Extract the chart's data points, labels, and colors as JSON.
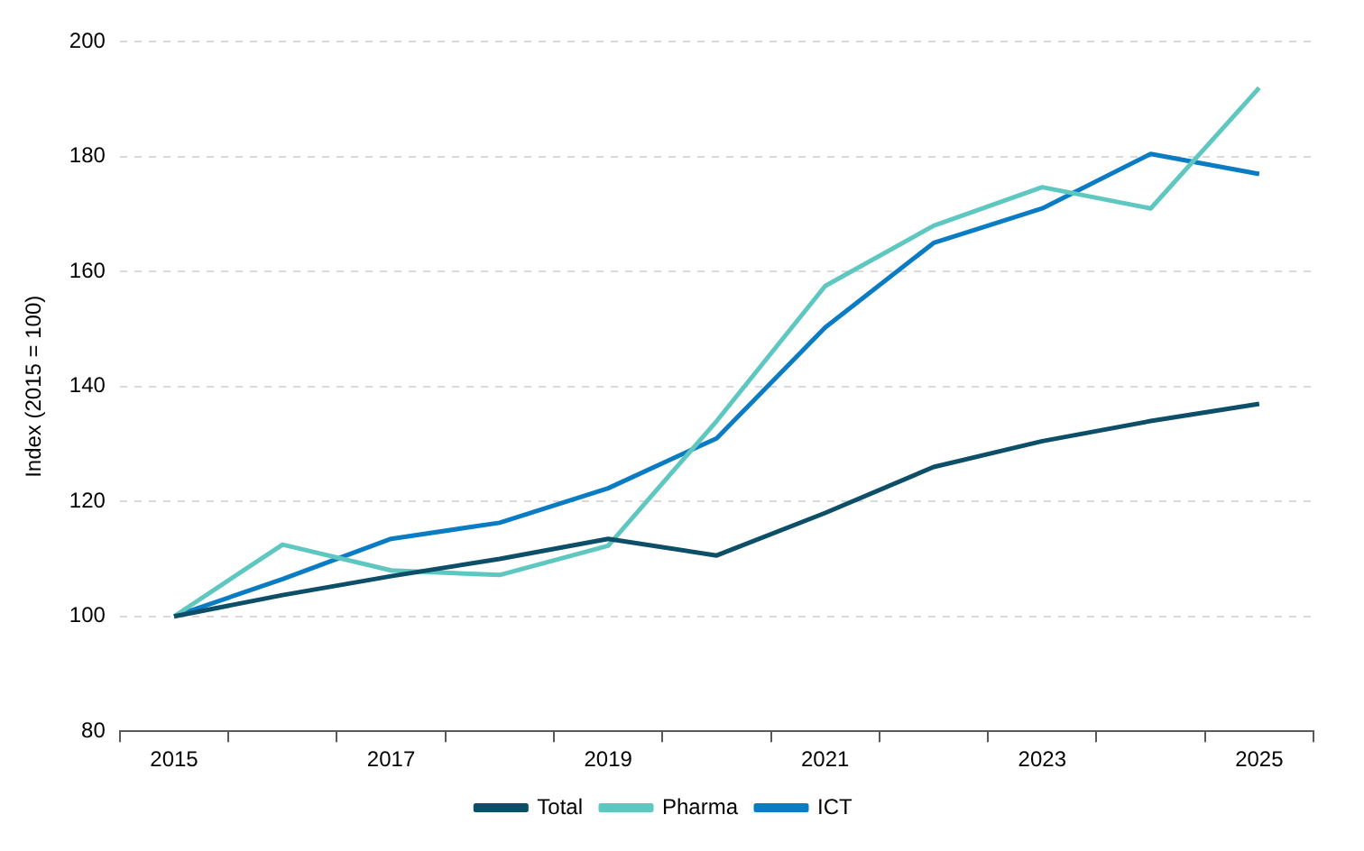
{
  "chart_data": {
    "type": "line",
    "ylabel": "Index (2015 = 100)",
    "categories": [
      "2015",
      null,
      "2017",
      null,
      "2019",
      null,
      "2021",
      null,
      "2023",
      null,
      "2025"
    ],
    "series": [
      {
        "name": "Total",
        "color": "#0d4f68",
        "values": [
          100,
          103.7,
          107,
          110,
          113.5,
          110.6,
          118,
          126,
          130.5,
          134,
          137
        ]
      },
      {
        "name": "Pharma",
        "color": "#5ec8c0",
        "values": [
          100,
          112.5,
          108,
          107.2,
          112.3,
          134,
          157.5,
          168,
          174.7,
          171,
          192
        ]
      },
      {
        "name": "ICT",
        "color": "#0a7cc4",
        "values": [
          100,
          106.5,
          113.5,
          116.3,
          122.3,
          131,
          150.3,
          165,
          171,
          180.5,
          177
        ]
      }
    ],
    "ylim": [
      80,
      200
    ],
    "yticks": [
      80,
      100,
      120,
      140,
      160,
      180,
      200
    ],
    "grid": "y",
    "legend": "bottom",
    "marker": "none",
    "line_style": "solid"
  }
}
